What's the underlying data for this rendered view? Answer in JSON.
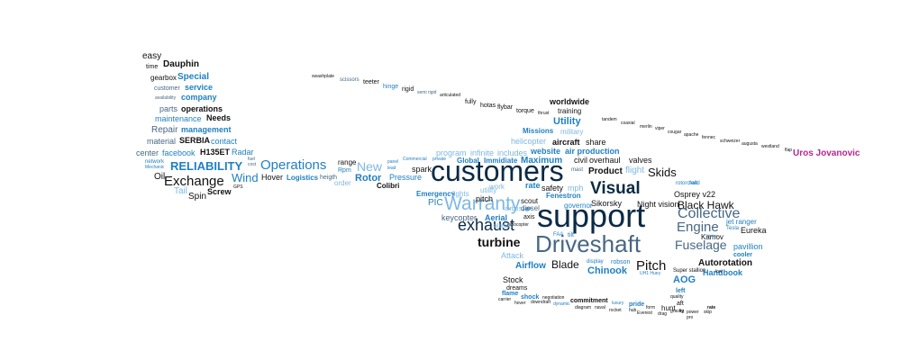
{
  "colors": {
    "navy": "#0b2a45",
    "black": "#111111",
    "blue": "#1f7fc4",
    "light_blue": "#7db8e2",
    "steel": "#476785",
    "magenta": "#b5278f"
  },
  "words": [
    "easy",
    "time",
    "Dauphin",
    "gearbox",
    "Special",
    "customer",
    "service",
    "availability",
    "company",
    "parts",
    "operations",
    "maintenance",
    "Needs",
    "Repair",
    "management",
    "material",
    "SERBIA",
    "contact",
    "center",
    "facebook",
    "H135ET",
    "Radar",
    "network",
    "Mechanic",
    "fuel",
    "cost",
    "RELIABILITY",
    "Operations",
    "range",
    "Rpm",
    "Oil",
    "Exchange",
    "Wind",
    "Hover",
    "GPS",
    "Tail",
    "Screw",
    "Spin",
    "Logistics",
    "heigth",
    "order",
    "New",
    "panel",
    "lead",
    "Rotor",
    "Pressure",
    "Colibri",
    "spark",
    "Emergency",
    "lights",
    "swashplate",
    "scissors",
    "teeter",
    "hinge",
    "semi rigid",
    "rigid",
    "articulated",
    "fully",
    "hotas",
    "flybar",
    "torque",
    "thrust",
    "training",
    "worldwide",
    "Utility",
    "military",
    "Missions",
    "tandem",
    "coaxial",
    "merlin",
    "viper",
    "cougar",
    "apache",
    "fennec",
    "schweizer",
    "augusta",
    "westland",
    "flap",
    "Uros Jovanovic",
    "helicopter",
    "aircraft",
    "share",
    "program",
    "infinite",
    "includes",
    "website",
    "air production",
    "Commercial",
    "private",
    "Global",
    "Immidiate",
    "civil",
    "overhaul",
    "valves",
    "Maximum",
    "mast",
    "Product",
    "flight",
    "Skids",
    "customers",
    "work",
    "utility",
    "rate",
    "safety",
    "mph",
    "Visual",
    "Warranty",
    "PIC",
    "airbus",
    "diesel",
    "Fenestron",
    "governor",
    "Sikorsky",
    "Night vision",
    "Osprey v22",
    "rotorcraft",
    "feed",
    "pitch",
    "scout",
    "HP",
    "axis",
    "support",
    "Black Hawk",
    "Collective",
    "keycopter",
    "Aerial",
    "Engine",
    "jet ranger",
    "Tesla",
    "exhaust",
    "altitude",
    "eurocopter",
    "Eureka",
    "Kamov",
    "Fuselage",
    "Driveshaft",
    "turbine",
    "FAA",
    "tilt",
    "pavillion",
    "cooler",
    "Attack",
    "Autorotation",
    "Handbook",
    "display",
    "robson",
    "UH1 Huey",
    "Blade",
    "Pitch",
    "Airflow",
    "Chinook",
    "Super stallion",
    "low",
    "AOG",
    "Stock",
    "dreams",
    "left",
    "quality",
    "aft",
    "flame",
    "negotiation",
    "shock",
    "carrier",
    "hover",
    "downdraft",
    "dynamic",
    "commitment",
    "diagram",
    "naval",
    "luxury",
    "pride",
    "rocket",
    "hub",
    "form",
    "Everest",
    "hunt",
    "drag",
    "gravity",
    "kg",
    "power",
    "pro",
    "skip",
    "rate",
    "Citation"
  ]
}
